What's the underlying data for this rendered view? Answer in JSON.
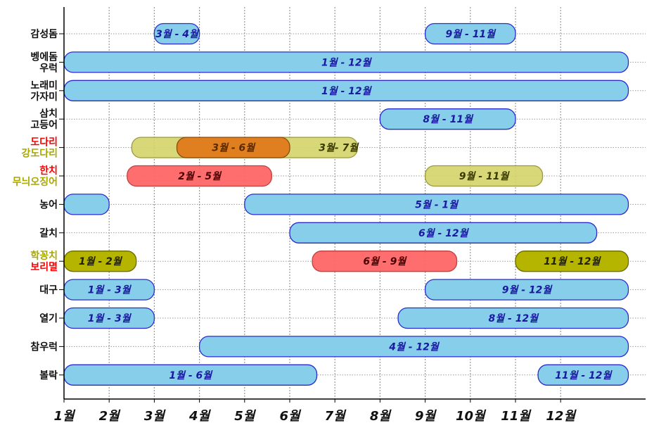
{
  "chart_data": {
    "type": "bar",
    "orientation": "horizontal-range",
    "title": "",
    "xlabel": "",
    "ylabel": "",
    "x_ticks": [
      "1월",
      "2월",
      "3월",
      "4월",
      "5월",
      "6월",
      "7월",
      "8월",
      "9월",
      "10월",
      "11월",
      "12월"
    ],
    "xlim": [
      1,
      13.5
    ],
    "grid": true,
    "colors": {
      "blue_fill": "#87CEEB",
      "blue_stroke": "#2B2BCF",
      "blue_text": "#1A1AA0",
      "orange_fill": "#E07A1A",
      "red_fill": "#FF6666",
      "khaki_fill": "#D4D46A",
      "olive_fill": "#B5B500",
      "red_label": "#FF0000",
      "khaki_label": "#A8A800",
      "dark_text": "#222222"
    },
    "categories": [
      {
        "lines": [
          {
            "text": "감성돔",
            "color": "#111111"
          }
        ]
      },
      {
        "lines": [
          {
            "text": "벵에돔",
            "color": "#111111"
          },
          {
            "text": "우럭",
            "color": "#111111"
          }
        ]
      },
      {
        "lines": [
          {
            "text": "노래미",
            "color": "#111111"
          },
          {
            "text": "가자미",
            "color": "#111111"
          }
        ]
      },
      {
        "lines": [
          {
            "text": "삼치",
            "color": "#111111"
          },
          {
            "text": "고등어",
            "color": "#111111"
          }
        ]
      },
      {
        "lines": [
          {
            "text": "도다리",
            "color": "#FF0000"
          },
          {
            "text": "강도다리",
            "color": "#A8A800"
          }
        ]
      },
      {
        "lines": [
          {
            "text": "한치",
            "color": "#FF0000"
          },
          {
            "text": "무늬오징어",
            "color": "#A8A800"
          }
        ]
      },
      {
        "lines": [
          {
            "text": "농어",
            "color": "#111111"
          }
        ]
      },
      {
        "lines": [
          {
            "text": "갈치",
            "color": "#111111"
          }
        ]
      },
      {
        "lines": [
          {
            "text": "학꽁치",
            "color": "#A8A800"
          },
          {
            "text": "보리멸",
            "color": "#FF0000"
          }
        ]
      },
      {
        "lines": [
          {
            "text": "대구",
            "color": "#111111"
          }
        ]
      },
      {
        "lines": [
          {
            "text": "열기",
            "color": "#111111"
          }
        ]
      },
      {
        "lines": [
          {
            "text": "참우럭",
            "color": "#111111"
          }
        ]
      },
      {
        "lines": [
          {
            "text": "볼락",
            "color": "#111111"
          }
        ]
      }
    ],
    "bars": [
      {
        "row": 0,
        "start": 3.0,
        "end": 4.0,
        "label": "3월 - 4월",
        "color": "blue"
      },
      {
        "row": 0,
        "start": 9.0,
        "end": 11.0,
        "label": "9월 - 11월",
        "color": "blue"
      },
      {
        "row": 1,
        "start": 1.0,
        "end": 13.5,
        "label": "1월 - 12월",
        "color": "blue"
      },
      {
        "row": 2,
        "start": 1.0,
        "end": 13.5,
        "label": "1월 - 12월",
        "color": "blue"
      },
      {
        "row": 3,
        "start": 8.0,
        "end": 11.0,
        "label": "8월 - 11월",
        "color": "blue"
      },
      {
        "row": 4,
        "start": 2.5,
        "end": 7.5,
        "label": "3월- 7월",
        "color": "khaki"
      },
      {
        "row": 4,
        "start": 3.5,
        "end": 6.0,
        "label": "3월 - 6월",
        "color": "orange"
      },
      {
        "row": 5,
        "start": 2.4,
        "end": 5.6,
        "label": "2월 - 5월",
        "color": "red"
      },
      {
        "row": 5,
        "start": 9.0,
        "end": 11.6,
        "label": "9월 - 11월",
        "color": "khaki"
      },
      {
        "row": 6,
        "start": 1.0,
        "end": 2.0,
        "label": "",
        "color": "blue"
      },
      {
        "row": 6,
        "start": 5.0,
        "end": 13.5,
        "label": "5월 - 1월",
        "color": "blue"
      },
      {
        "row": 7,
        "start": 6.0,
        "end": 12.8,
        "label": "6월 - 12월",
        "color": "blue"
      },
      {
        "row": 8,
        "start": 1.0,
        "end": 2.6,
        "label": "1월 - 2월",
        "color": "olive"
      },
      {
        "row": 8,
        "start": 6.5,
        "end": 9.7,
        "label": "6월 - 9월",
        "color": "red"
      },
      {
        "row": 8,
        "start": 11.0,
        "end": 13.5,
        "label": "11월 - 12월",
        "color": "olive"
      },
      {
        "row": 9,
        "start": 1.0,
        "end": 3.0,
        "label": "1월 - 3월",
        "color": "blue"
      },
      {
        "row": 9,
        "start": 9.0,
        "end": 13.5,
        "label": "9월 - 12월",
        "color": "blue"
      },
      {
        "row": 10,
        "start": 1.0,
        "end": 3.0,
        "label": "1월 - 3월",
        "color": "blue"
      },
      {
        "row": 10,
        "start": 8.4,
        "end": 13.5,
        "label": "8월 - 12월",
        "color": "blue"
      },
      {
        "row": 11,
        "start": 4.0,
        "end": 13.5,
        "label": "4월 - 12월",
        "color": "blue"
      },
      {
        "row": 12,
        "start": 1.0,
        "end": 6.6,
        "label": "1월 - 6월",
        "color": "blue"
      },
      {
        "row": 12,
        "start": 11.5,
        "end": 13.5,
        "label": "11월 - 12월",
        "color": "blue"
      }
    ]
  }
}
